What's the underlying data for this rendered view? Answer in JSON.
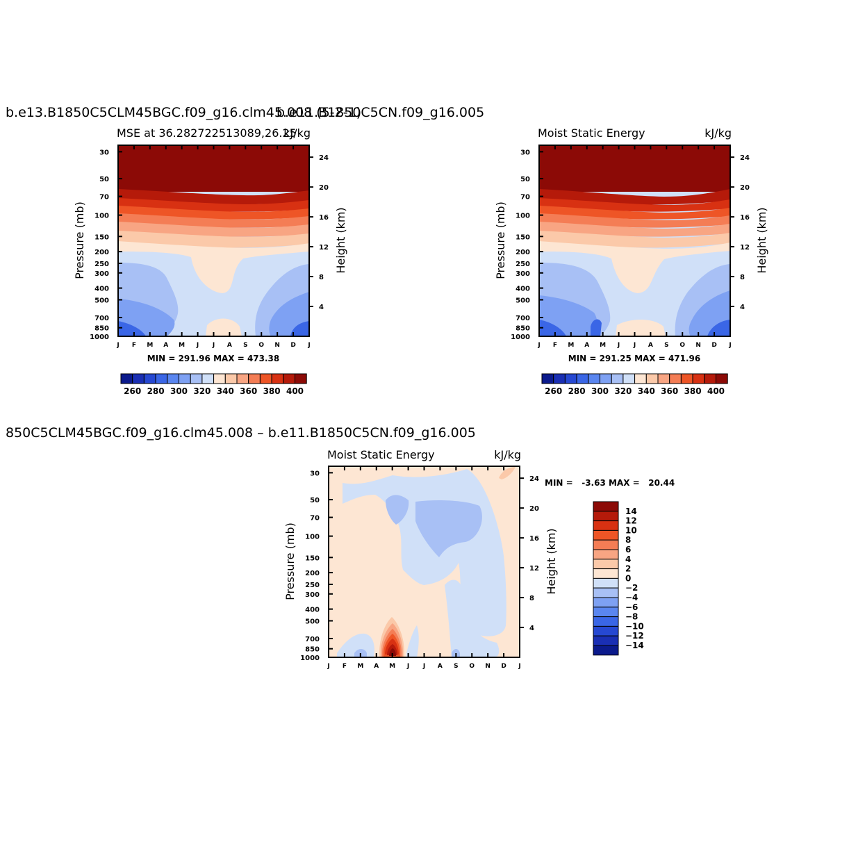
{
  "chart_data": [
    {
      "type": "contour",
      "title": "b.e13.B1850C5CLM45BGC.f09_g16.clm45.008 (5-2-1)",
      "subtitle_left": "MSE at 36.282722513089,26.25",
      "subtitle_right": "kJ/kg",
      "overlap_text": "b.e11.B1850C5CN.f09_g16.005",
      "ylabel": "Pressure (mb)",
      "y2label": "Height (km)",
      "x_ticks": [
        "J",
        "F",
        "M",
        "A",
        "M",
        "J",
        "J",
        "A",
        "S",
        "O",
        "N",
        "D",
        "J"
      ],
      "y_ticks": [
        30,
        50,
        70,
        100,
        150,
        200,
        250,
        300,
        400,
        500,
        700,
        850,
        1000
      ],
      "y2_ticks": [
        24,
        20,
        16,
        12,
        8,
        4
      ],
      "min_max": "MIN = 291.96 MAX = 473.38",
      "min": 291.96,
      "max": 473.38,
      "colorbar": {
        "orientation": "horizontal",
        "labels": [
          "260",
          "280",
          "300",
          "320",
          "340",
          "360",
          "380",
          "400"
        ],
        "colors": [
          "#0b1a8c",
          "#1a2fb4",
          "#2648d2",
          "#3a66e6",
          "#5a86f0",
          "#7ea1f3",
          "#a8c0f5",
          "#d0e0f8",
          "#fde6d3",
          "#fbc9a9",
          "#f8a583",
          "#f47d55",
          "#ee5526",
          "#d83112",
          "#b51a0a",
          "#8c0a06"
        ]
      },
      "bands": [
        {
          "p": 1000,
          "fill": "#3a66e6"
        },
        {
          "p": 700,
          "fill": "#7ea1f3"
        },
        {
          "p": 400,
          "fill": "#a8c0f5"
        },
        {
          "p": 200,
          "fill": "#d0e0f8"
        },
        {
          "p": 150,
          "fill": "#fde6d3"
        },
        {
          "p": 120,
          "fill": "#fbc9a9"
        },
        {
          "p": 100,
          "fill": "#f8a583"
        },
        {
          "p": 85,
          "fill": "#f47d55"
        },
        {
          "p": 75,
          "fill": "#ee5526"
        },
        {
          "p": 65,
          "fill": "#d83112"
        },
        {
          "p": 55,
          "fill": "#b51a0a"
        }
      ]
    },
    {
      "type": "contour",
      "title": "",
      "subtitle_left": "Moist Static Energy",
      "subtitle_right": "kJ/kg",
      "ylabel": "Pressure (mb)",
      "y2label": "Height (km)",
      "x_ticks": [
        "J",
        "F",
        "M",
        "A",
        "M",
        "J",
        "J",
        "A",
        "S",
        "O",
        "N",
        "D",
        "J"
      ],
      "y_ticks": [
        30,
        50,
        70,
        100,
        150,
        200,
        250,
        300,
        400,
        500,
        700,
        850,
        1000
      ],
      "y2_ticks": [
        24,
        20,
        16,
        12,
        8,
        4
      ],
      "min_max": "MIN = 291.25 MAX = 471.96",
      "min": 291.25,
      "max": 471.96,
      "colorbar": {
        "orientation": "horizontal",
        "labels": [
          "260",
          "280",
          "300",
          "320",
          "340",
          "360",
          "380",
          "400"
        ]
      }
    },
    {
      "type": "contour",
      "title": "850C5CLM45BGC.f09_g16.clm45.008 – b.e11.B1850C5CN.f09_g16.005",
      "subtitle_left": "Moist Static Energy",
      "subtitle_right": "kJ/kg",
      "ylabel": "Pressure (mb)",
      "y2label": "Height (km)",
      "x_ticks": [
        "J",
        "F",
        "M",
        "A",
        "M",
        "J",
        "J",
        "A",
        "S",
        "O",
        "N",
        "D",
        "J"
      ],
      "y_ticks": [
        30,
        50,
        70,
        100,
        150,
        200,
        250,
        300,
        400,
        500,
        700,
        850,
        1000
      ],
      "y2_ticks": [
        24,
        20,
        16,
        12,
        8,
        4
      ],
      "min_max": "MIN =   -3.63 MAX =   20.44",
      "min": -3.63,
      "max": 20.44,
      "colorbar": {
        "orientation": "vertical",
        "labels": [
          "14",
          "12",
          "10",
          "8",
          "6",
          "4",
          "2",
          "0",
          "-2",
          "-4",
          "-6",
          "-8",
          "-10",
          "-12",
          "-14"
        ],
        "colors": [
          "#8c0a06",
          "#b51a0a",
          "#d83112",
          "#ee5526",
          "#f47d55",
          "#f8a583",
          "#fbc9a9",
          "#fde6d3",
          "#d0e0f8",
          "#a8c0f5",
          "#7ea1f3",
          "#5a86f0",
          "#3a66e6",
          "#2648d2",
          "#1a2fb4",
          "#0b1a8c"
        ]
      }
    }
  ]
}
